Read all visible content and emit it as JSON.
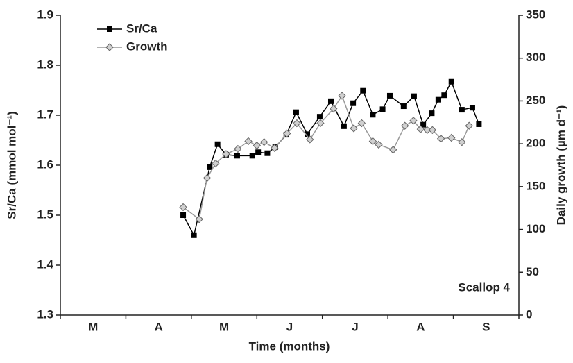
{
  "chart_data": {
    "type": "line",
    "ylabel": "Sr/Ca (mmol mol⁻¹)",
    "y2label": "Daily growth (µm d⁻¹)",
    "xlabel": "Time (months)",
    "annotation": "Scallop 4",
    "categories": [
      "M",
      "A",
      "M",
      "J",
      "J",
      "A",
      "S"
    ],
    "xlim": [
      0,
      7
    ],
    "xticks": [
      0,
      1,
      2,
      3,
      4,
      5,
      6,
      7
    ],
    "ylim": [
      1.3,
      1.9
    ],
    "yticks": [
      1.3,
      1.4,
      1.5,
      1.6,
      1.7,
      1.8,
      1.9
    ],
    "y2lim": [
      0,
      350
    ],
    "y2ticks": [
      0,
      50,
      100,
      150,
      200,
      250,
      300,
      350
    ],
    "legend": "upper left",
    "series": [
      {
        "name": "Sr/Ca",
        "color": "#000000",
        "marker": "square",
        "x": [
          1.875,
          2.04,
          2.28,
          2.4,
          2.53,
          2.7,
          2.93,
          3.02,
          3.16,
          3.28,
          3.45,
          3.6,
          3.77,
          3.96,
          4.13,
          4.33,
          4.47,
          4.62,
          4.77,
          4.92,
          5.03,
          5.24,
          5.4,
          5.54,
          5.67,
          5.77,
          5.86,
          5.97,
          6.13,
          6.29,
          6.39
        ],
        "values": [
          1.5,
          1.46,
          1.596,
          1.642,
          1.621,
          1.619,
          1.619,
          1.626,
          1.624,
          1.636,
          1.661,
          1.706,
          1.662,
          1.697,
          1.728,
          1.678,
          1.724,
          1.749,
          1.701,
          1.712,
          1.739,
          1.718,
          1.738,
          1.681,
          1.704,
          1.731,
          1.74,
          1.767,
          1.711,
          1.715,
          1.682
        ]
      },
      {
        "name": "Growth",
        "color": "#999999",
        "marker": "diamond",
        "axis": "y2",
        "x": [
          1.875,
          2.12,
          2.24,
          2.37,
          2.53,
          2.71,
          2.87,
          3.0,
          3.11,
          3.27,
          3.46,
          3.61,
          3.81,
          3.97,
          4.17,
          4.3,
          4.48,
          4.6,
          4.77,
          4.86,
          5.08,
          5.26,
          5.39,
          5.5,
          5.6,
          5.68,
          5.81,
          5.97,
          6.13,
          6.24
        ],
        "values": [
          126,
          112,
          160,
          177,
          188,
          194,
          203,
          198,
          202,
          195,
          212,
          224,
          205,
          224,
          241,
          256,
          218,
          224,
          203,
          199,
          193,
          221,
          227,
          217,
          216,
          216,
          206,
          207,
          202,
          221
        ]
      }
    ]
  }
}
